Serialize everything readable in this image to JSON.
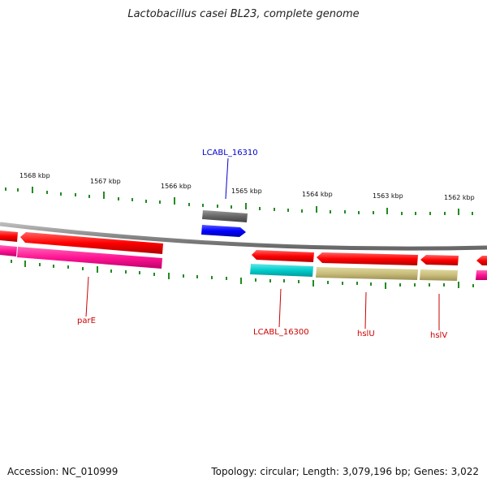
{
  "title": "Lactobacillus casei BL23, complete genome",
  "footer": {
    "accession": "Accession: NC_010999",
    "summary": "Topology: circular; Length: 3,079,196 bp; Genes: 3,022"
  },
  "ruler": {
    "labels": [
      "1568 kbp",
      "1567 kbp",
      "1566 kbp",
      "1565 kbp",
      "1564 kbp",
      "1563 kbp",
      "1562 kbp"
    ]
  },
  "genes": [
    {
      "name": "LCABL_16310",
      "color": "#0000cc"
    },
    {
      "name": "parE",
      "color": "#cc0000"
    },
    {
      "name": "LCABL_16300",
      "color": "#cc0000"
    },
    {
      "name": "hslU",
      "color": "#cc0000"
    },
    {
      "name": "hslV",
      "color": "#cc0000"
    }
  ],
  "colors": {
    "backbone": "#888888",
    "cds": "#ff0000",
    "gene_pink": "#ff1493",
    "gene_teal": "#00cccc",
    "gene_khaki": "#c8bd7a",
    "gene_gray": "#666666",
    "gene_blue": "#0000ff",
    "tick": "#228b22"
  }
}
